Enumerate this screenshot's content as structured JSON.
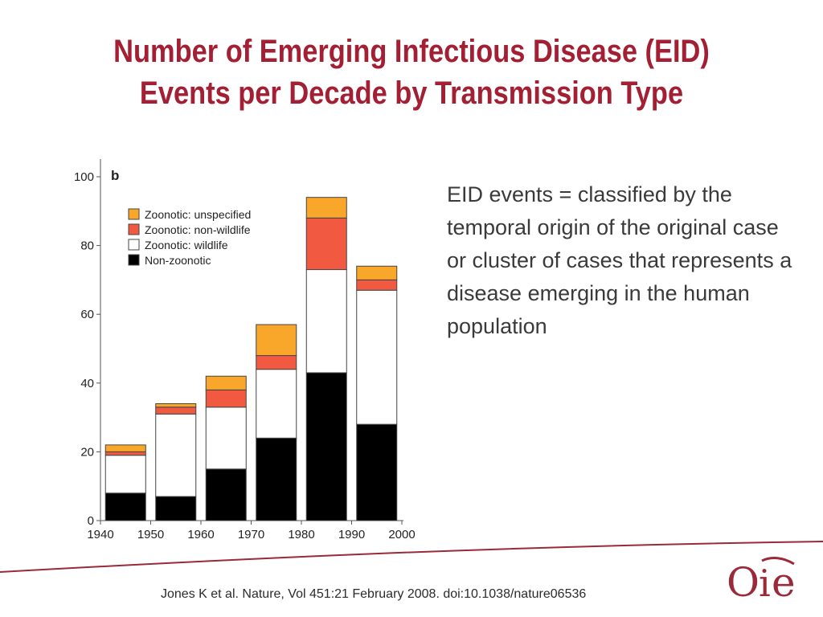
{
  "title": {
    "line1": "Number of Emerging Infectious Disease (EID)",
    "line2": "Events per Decade by Transmission Type"
  },
  "side_text": "EID events = classified by the temporal origin of the original case or cluster of cases that represents a disease emerging in the human population",
  "citation": "Jones K et al. Nature, Vol 451:21 February 2008. doi:10.1038/nature06536",
  "logo": {
    "text": "OIE"
  },
  "colors": {
    "title": "#a31f34",
    "non_zoonotic": "#000000",
    "zoonotic_wildlife": "#ffffff",
    "zoonotic_non_wildlife": "#f15a40",
    "zoonotic_unspecified": "#f9a72b"
  },
  "chart_data": {
    "type": "bar",
    "stacked": true,
    "panel_label": "b",
    "x_ticks": [
      "1940",
      "1950",
      "1960",
      "1970",
      "1980",
      "1990",
      "2000"
    ],
    "categories": [
      "1940",
      "1950",
      "1960",
      "1970",
      "1980",
      "1990"
    ],
    "y_ticks": [
      "0",
      "20",
      "40",
      "60",
      "80",
      "100"
    ],
    "ylim": [
      0,
      100
    ],
    "series": [
      {
        "name": "Non-zoonotic",
        "color": "#000000",
        "values": [
          8,
          7,
          15,
          24,
          43,
          28
        ]
      },
      {
        "name": "Zoonotic: wildlife",
        "color": "#ffffff",
        "values": [
          11,
          24,
          18,
          20,
          30,
          39
        ]
      },
      {
        "name": "Zoonotic: non-wildlife",
        "color": "#f15a40",
        "values": [
          1,
          2,
          5,
          4,
          15,
          3
        ]
      },
      {
        "name": "Zoonotic: unspecified",
        "color": "#f9a72b",
        "values": [
          2,
          1,
          4,
          9,
          6,
          4
        ]
      }
    ],
    "legend_order": [
      "Zoonotic: unspecified",
      "Zoonotic: non-wildlife",
      "Zoonotic: wildlife",
      "Non-zoonotic"
    ],
    "legend_placement": "top-left",
    "grid": false
  }
}
